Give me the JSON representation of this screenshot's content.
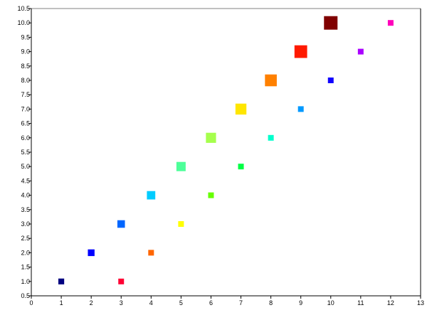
{
  "chart_data": {
    "type": "scatter",
    "title": "",
    "xlabel": "",
    "ylabel": "",
    "xlim": [
      0,
      13
    ],
    "ylim": [
      0.5,
      10.5
    ],
    "grid": false,
    "marker": "square",
    "x_ticks": [
      "0",
      "1",
      "2",
      "3",
      "4",
      "5",
      "6",
      "7",
      "8",
      "9",
      "10",
      "11",
      "12",
      "13"
    ],
    "y_ticks": [
      "0.5",
      "1.0",
      "1.5",
      "2.0",
      "2.5",
      "3.0",
      "3.5",
      "4.0",
      "4.5",
      "5.0",
      "5.5",
      "6.0",
      "6.5",
      "7.0",
      "7.5",
      "8.0",
      "8.5",
      "9.0",
      "9.5",
      "10.0",
      "10.5"
    ],
    "series": [
      {
        "x": [
          1,
          2,
          3,
          4,
          5,
          6,
          7,
          8,
          9,
          10
        ],
        "y": [
          1,
          2,
          3,
          4,
          5,
          6,
          7,
          8,
          9,
          10
        ],
        "sizes": [
          1,
          2,
          3,
          4,
          5,
          6,
          7,
          8,
          9,
          10
        ],
        "colors": [
          "#000080",
          "#0000ff",
          "#0066ff",
          "#00ccff",
          "#4dff99",
          "#a6ff4d",
          "#ffe600",
          "#ff8000",
          "#ff1a00",
          "#800000"
        ]
      },
      {
        "x": [
          3,
          4,
          5,
          6,
          7,
          8,
          9,
          10,
          11,
          12
        ],
        "y": [
          1,
          2,
          3,
          4,
          5,
          6,
          7,
          8,
          9,
          10
        ],
        "colors": [
          "#ff0033",
          "#ff6600",
          "#ffff00",
          "#66ff00",
          "#00ff44",
          "#00ffcc",
          "#0099ff",
          "#1100ff",
          "#aa00ff",
          "#ff00bb"
        ]
      }
    ]
  }
}
